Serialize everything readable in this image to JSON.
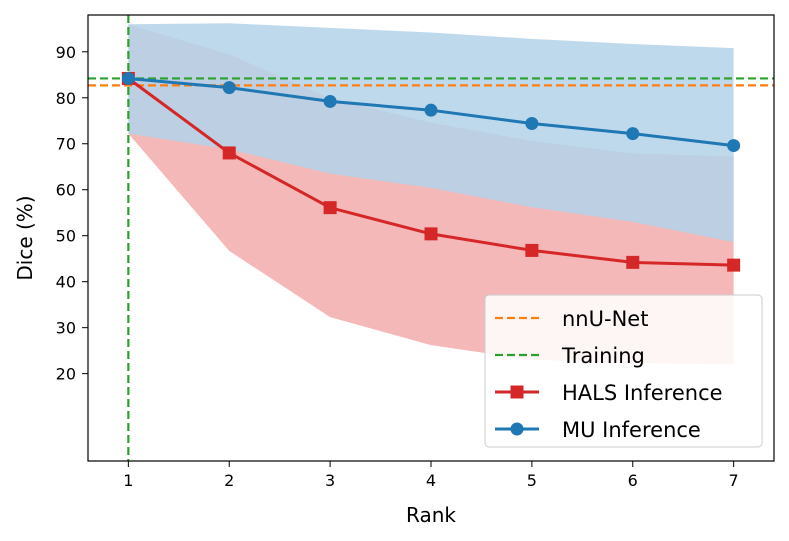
{
  "chart_data": {
    "type": "line",
    "title": "",
    "xlabel": "Rank",
    "ylabel": "Dice (%)",
    "x": [
      1,
      2,
      3,
      4,
      5,
      6,
      7
    ],
    "xlim": [
      0.6,
      7.4
    ],
    "ylim": [
      1,
      98
    ],
    "xticks": [
      "1",
      "2",
      "3",
      "4",
      "5",
      "6",
      "7"
    ],
    "yticks": [
      "20",
      "30",
      "40",
      "50",
      "60",
      "70",
      "80",
      "90"
    ],
    "grid": false,
    "legend_position": "lower-right",
    "reference_lines": [
      {
        "name": "nnU-Net",
        "orientation": "horizontal",
        "value": 82.7,
        "color": "#ff7f0e",
        "style": "dashed"
      },
      {
        "name": "Training",
        "orientation": "horizontal",
        "value": 84.2,
        "color": "#2ca02c",
        "style": "dashed"
      },
      {
        "name": "",
        "orientation": "vertical",
        "value": 1,
        "color": "#2ca02c",
        "style": "dashed"
      }
    ],
    "series": [
      {
        "name": "HALS Inference",
        "color": "#d62728",
        "marker": "square",
        "values": [
          84.2,
          68.0,
          56.1,
          50.4,
          46.8,
          44.2,
          43.6
        ],
        "band_lower": [
          72.2,
          46.7,
          32.3,
          26.2,
          23.0,
          22.3,
          22.0
        ],
        "band_upper": [
          96.0,
          89.4,
          79.9,
          74.6,
          70.6,
          67.9,
          67.2
        ],
        "band_color": "#f4b8b8"
      },
      {
        "name": "MU Inference",
        "color": "#1f77b4",
        "marker": "circle",
        "values": [
          84.2,
          82.2,
          79.2,
          77.3,
          74.4,
          72.2,
          69.6
        ],
        "band_lower": [
          72.2,
          68.8,
          63.5,
          60.4,
          56.2,
          53.0,
          48.6
        ],
        "band_upper": [
          96.0,
          96.2,
          95.2,
          94.2,
          92.8,
          91.7,
          90.8
        ],
        "band_color": "#b3d2e9"
      }
    ],
    "legend": [
      {
        "label": "nnU-Net",
        "color": "#ff7f0e",
        "style": "dashed",
        "marker": "none"
      },
      {
        "label": "Training",
        "color": "#2ca02c",
        "style": "dashed",
        "marker": "none"
      },
      {
        "label": "HALS Inference",
        "color": "#d62728",
        "style": "solid",
        "marker": "square"
      },
      {
        "label": "MU Inference",
        "color": "#1f77b4",
        "style": "solid",
        "marker": "circle"
      }
    ]
  }
}
